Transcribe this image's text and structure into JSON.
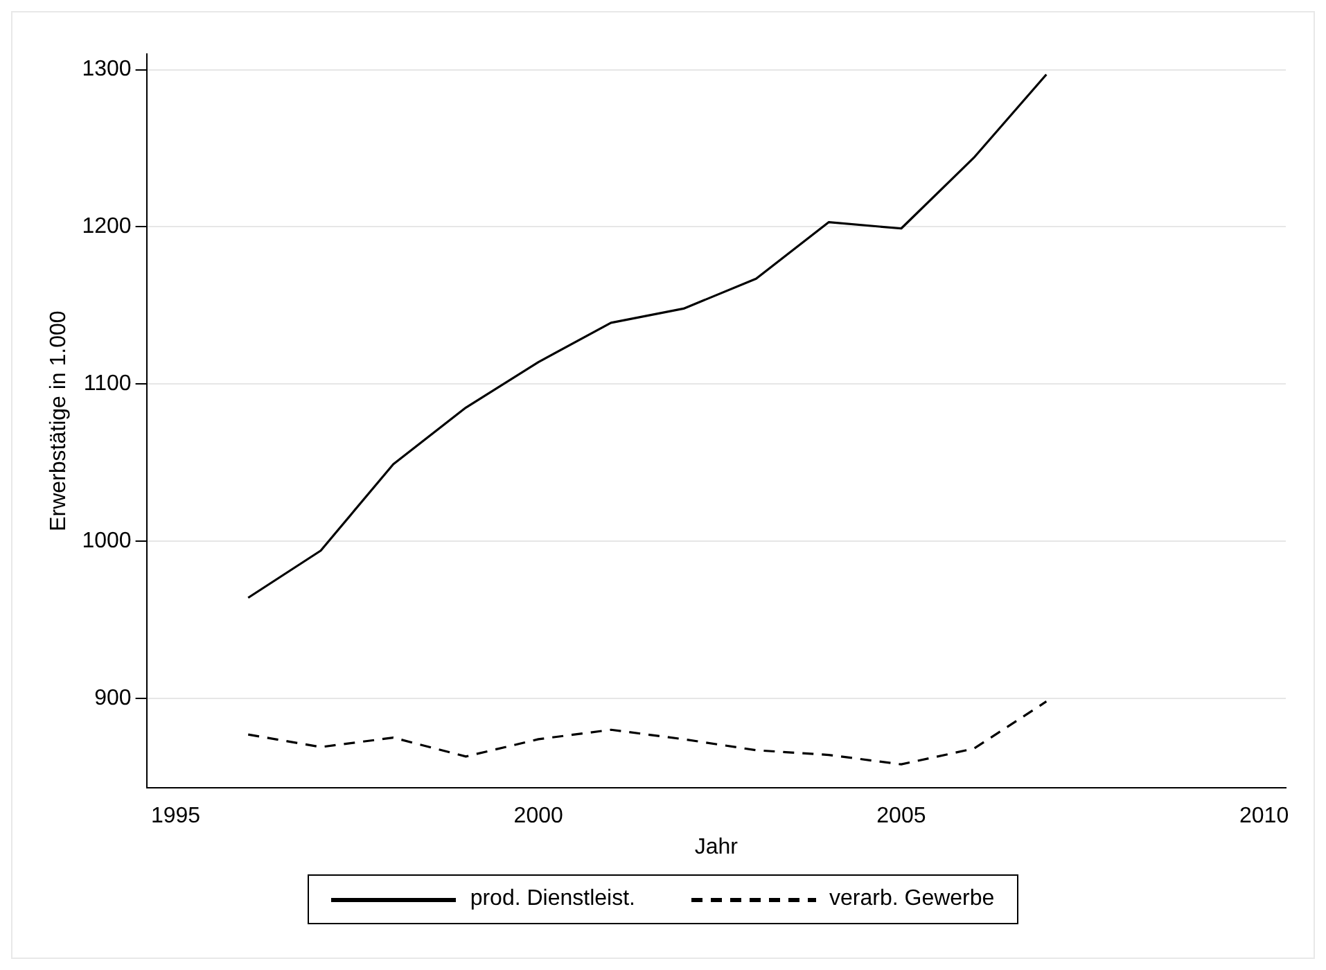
{
  "chart_data": {
    "type": "line",
    "xlabel": "Jahr",
    "ylabel": "Erwerbstätige in 1.000",
    "x": [
      1996,
      1997,
      1998,
      1999,
      2000,
      2001,
      2002,
      2003,
      2004,
      2005,
      2006,
      2007
    ],
    "series": [
      {
        "name": "prod. Dienstleist.",
        "color": "#000000",
        "line_style": "solid",
        "values": [
          964,
          994,
          1049,
          1085,
          1114,
          1139,
          1148,
          1167,
          1203,
          1199,
          1244,
          1297
        ]
      },
      {
        "name": "verarb. Gewerbe",
        "color": "#000000",
        "line_style": "dashed",
        "values": [
          877,
          869,
          875,
          863,
          874,
          880,
          874,
          867,
          864,
          858,
          868,
          898
        ]
      }
    ],
    "xlim": [
      1994.6,
      2010.3
    ],
    "xticks": [
      1995,
      2000,
      2005,
      2010
    ],
    "ylim": [
      843,
      1310
    ],
    "yticks": [
      900,
      1000,
      1100,
      1200,
      1300
    ],
    "grid": "y",
    "legend": "bottom",
    "marker": "none"
  }
}
